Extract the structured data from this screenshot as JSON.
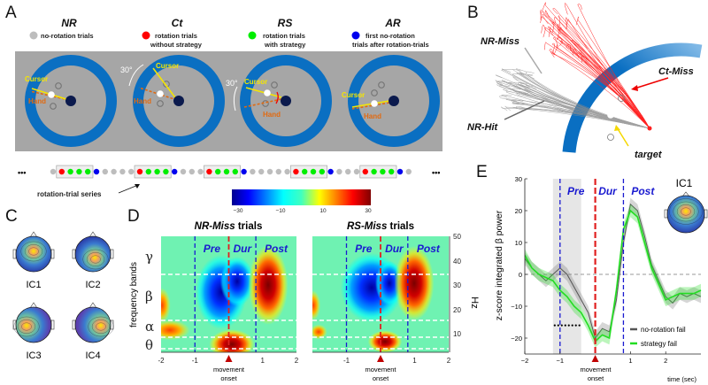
{
  "panels": {
    "A": "A",
    "B": "B",
    "C": "C",
    "D": "D",
    "E": "E"
  },
  "panel_a": {
    "conditions": [
      {
        "code": "NR",
        "desc1": "no-rotation trials",
        "desc2": "",
        "color": "#bdbdbd"
      },
      {
        "code": "Ct",
        "desc1": "rotation trials",
        "desc2": "without strategy",
        "color": "#ff0000"
      },
      {
        "code": "RS",
        "desc1": "rotation trials",
        "desc2": "with strategy",
        "color": "#00ee00"
      },
      {
        "code": "AR",
        "desc1": "first no-rotation",
        "desc2": "trials after rotation-trials",
        "color": "#0000ee"
      }
    ],
    "cursor_label": "Cursor",
    "hand_label": "Hand",
    "rotation_label": "30°",
    "ellipsis": "•••",
    "series_label": "rotation-trial series",
    "trial_series": [
      "NR",
      "Ct",
      "RS",
      "RS",
      "RS",
      "AR",
      "NR",
      "NR",
      "NR",
      "NR",
      "Ct",
      "RS",
      "RS",
      "RS",
      "AR",
      "NR",
      "NR",
      "NR",
      "Ct",
      "RS",
      "RS",
      "RS",
      "AR",
      "NR",
      "NR",
      "NR",
      "NR",
      "NR",
      "Ct",
      "RS",
      "RS",
      "RS",
      "AR",
      "NR",
      "NR",
      "NR",
      "Ct",
      "RS",
      "RS",
      "RS",
      "AR",
      "NR"
    ],
    "workspace_color": "#a6a6a6",
    "ring_color": "#0a6fc2"
  },
  "panel_b": {
    "nr_miss": "NR-Miss",
    "nr_hit": "NR-Hit",
    "ct_miss": "Ct-Miss",
    "target": "target"
  },
  "panel_c": {
    "components": [
      "IC1",
      "IC2",
      "IC3",
      "IC4"
    ]
  },
  "panel_d": {
    "colorbar_ticks": [
      "−30",
      "−10",
      "10",
      "30"
    ],
    "colorbar_range": [
      -30,
      30
    ],
    "colormap": "jet",
    "titles": [
      {
        "italic": "NR-Miss",
        "rest": " trials"
      },
      {
        "italic": "RS-Miss",
        "rest": " trials"
      }
    ],
    "phases": [
      "Pre",
      "Dur",
      "Post"
    ],
    "ylabel": "frequency bands",
    "bands": [
      "γ",
      "β",
      "α",
      "θ"
    ],
    "hz_ticks": [
      "50",
      "40",
      "30",
      "20",
      "10"
    ],
    "hz_label": "Hz",
    "x_ticks": [
      "-2",
      "-1",
      "1",
      "2"
    ],
    "onset_line1": "movement",
    "onset_line2": "onset"
  },
  "panel_e": {
    "ic_label": "IC1",
    "onset_line1": "movement",
    "onset_line2": "onset",
    "x_ticks": [
      "−2",
      "−1",
      "1",
      "2"
    ],
    "y_ticks": [
      "30",
      "20",
      "10",
      "0",
      "−10",
      "−20"
    ]
  },
  "chart_data": {
    "type": "line",
    "title": "",
    "xlabel": "time (sec)",
    "ylabel": "z-score integrated β power",
    "xlim": [
      -2,
      3
    ],
    "ylim": [
      -25,
      30
    ],
    "grid": false,
    "legend_position": "bottom-right",
    "phases": [
      {
        "name": "Pre",
        "start": -1.0,
        "end": 0
      },
      {
        "name": "Dur",
        "start": 0,
        "end": 0.8
      },
      {
        "name": "Post",
        "start": 0.8,
        "end": 3.0
      }
    ],
    "shaded_interval": [
      -1.2,
      -0.4
    ],
    "significance_marker_x": [
      -1.15,
      -1.05,
      -0.95,
      -0.85,
      -0.75,
      -0.65,
      -0.55,
      -0.45
    ],
    "significance_marker_y": -16,
    "x": [
      -2,
      -1.8,
      -1.6,
      -1.4,
      -1.2,
      -1.0,
      -0.8,
      -0.6,
      -0.4,
      -0.2,
      0,
      0.2,
      0.4,
      0.6,
      0.8,
      1.0,
      1.2,
      1.4,
      1.6,
      1.8,
      2.0,
      2.2,
      2.4,
      2.6,
      2.8,
      3.0
    ],
    "series": [
      {
        "name": "no-rotation fail",
        "color": "#555555",
        "values": [
          5,
          2,
          0,
          -2,
          0,
          2,
          0,
          -4,
          -8,
          -12,
          -20,
          -17,
          -18,
          -8,
          10,
          22,
          20,
          12,
          3,
          -2,
          -7,
          -9,
          -6,
          -7,
          -6,
          -7
        ]
      },
      {
        "name": "strategy fail",
        "color": "#22dd22",
        "values": [
          6,
          2,
          0,
          -1,
          -2,
          -5,
          -7,
          -10,
          -12,
          -16,
          -21,
          -19,
          -20,
          -5,
          14,
          20,
          18,
          10,
          2,
          -3,
          -8,
          -7,
          -6,
          -6,
          -6,
          -5
        ]
      }
    ]
  }
}
